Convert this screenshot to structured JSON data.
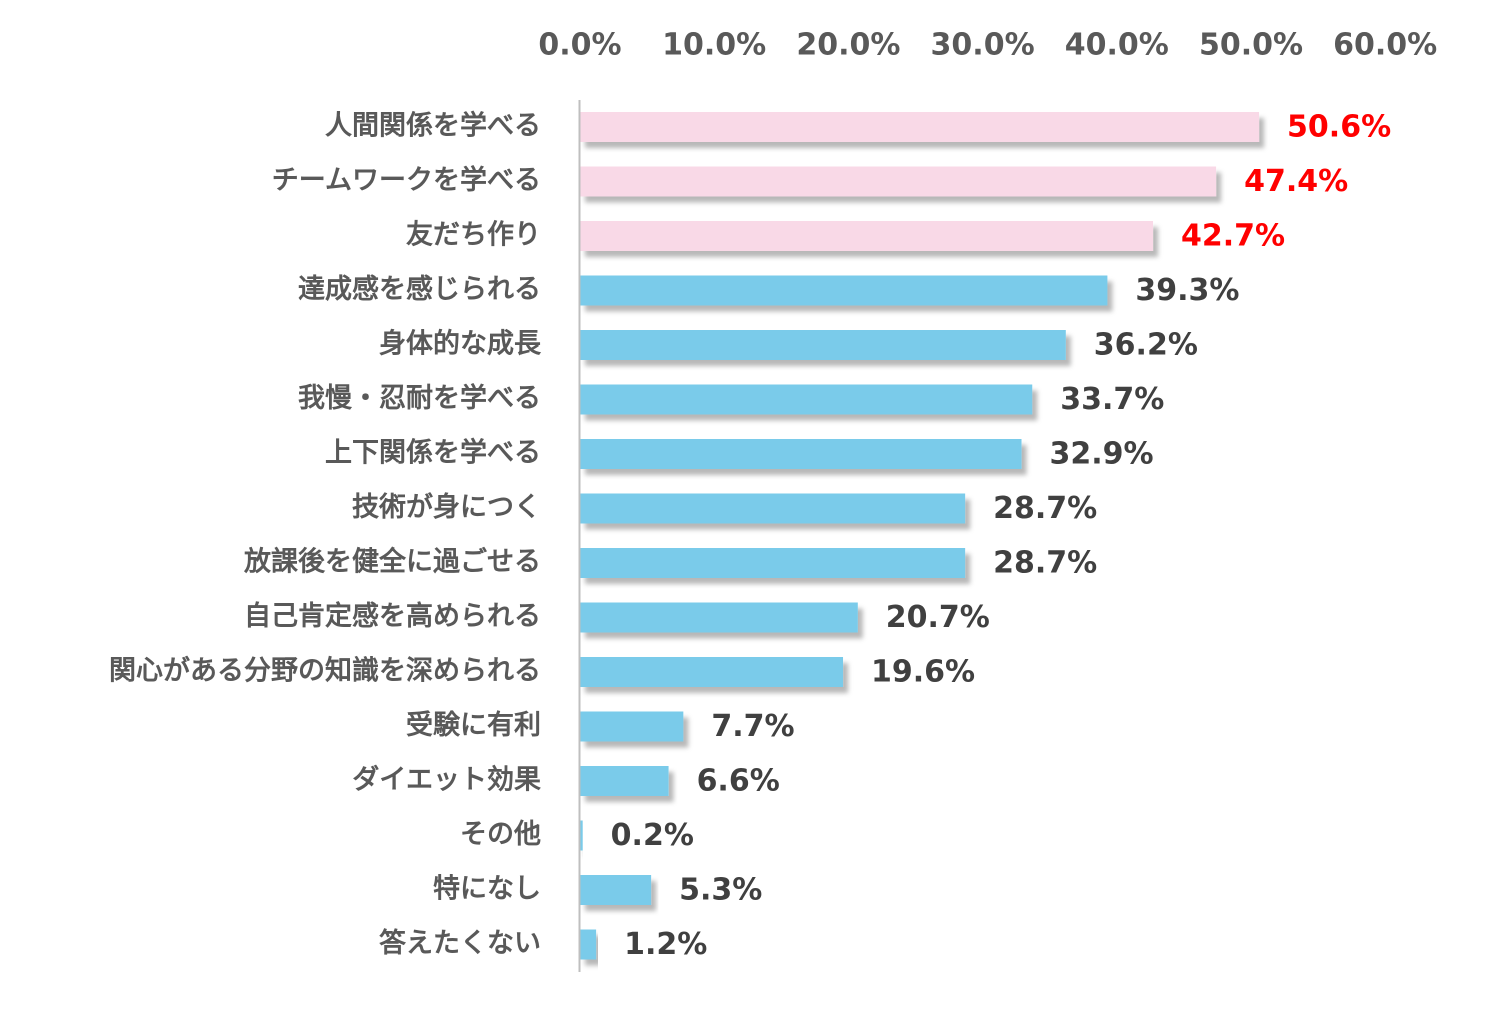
{
  "chart_data": {
    "type": "bar",
    "orientation": "horizontal",
    "title": "",
    "xlabel": "",
    "ylabel": "",
    "xlim": [
      0,
      60
    ],
    "ticks": [
      0,
      10,
      20,
      30,
      40,
      50,
      60
    ],
    "tick_labels": [
      "0.0%",
      "10.0%",
      "20.0%",
      "30.0%",
      "40.0%",
      "50.0%",
      "60.0%"
    ],
    "grid": false,
    "categories": [
      "人間関係を学べる",
      "チームワークを学べる",
      "友だち作り",
      "達成感を感じられる",
      "身体的な成長",
      "我慢・忍耐を学べる",
      "上下関係を学べる",
      "技術が身につく",
      "放課後を健全に過ごせる",
      "自己肯定感を高められる",
      "関心がある分野の知識を深められる",
      "受験に有利",
      "ダイエット効果",
      "その他",
      "特になし",
      "答えたくない"
    ],
    "values": [
      50.6,
      47.4,
      42.7,
      39.3,
      36.2,
      33.7,
      32.9,
      28.7,
      28.7,
      20.7,
      19.6,
      7.7,
      6.6,
      0.2,
      5.3,
      1.2
    ],
    "value_labels": [
      "50.6%",
      "47.4%",
      "42.7%",
      "39.3%",
      "36.2%",
      "33.7%",
      "32.9%",
      "28.7%",
      "28.7%",
      "20.7%",
      "19.6%",
      "7.7%",
      "6.6%",
      "0.2%",
      "5.3%",
      "1.2%"
    ],
    "highlight_top_n": 3,
    "colors": {
      "highlight_bar": "#F9D9E7",
      "normal_bar": "#7ACBEA",
      "highlight_label": "#FF0000",
      "normal_label": "#404040",
      "axis_text": "#595959",
      "axis_line": "#BFBFBF"
    }
  }
}
